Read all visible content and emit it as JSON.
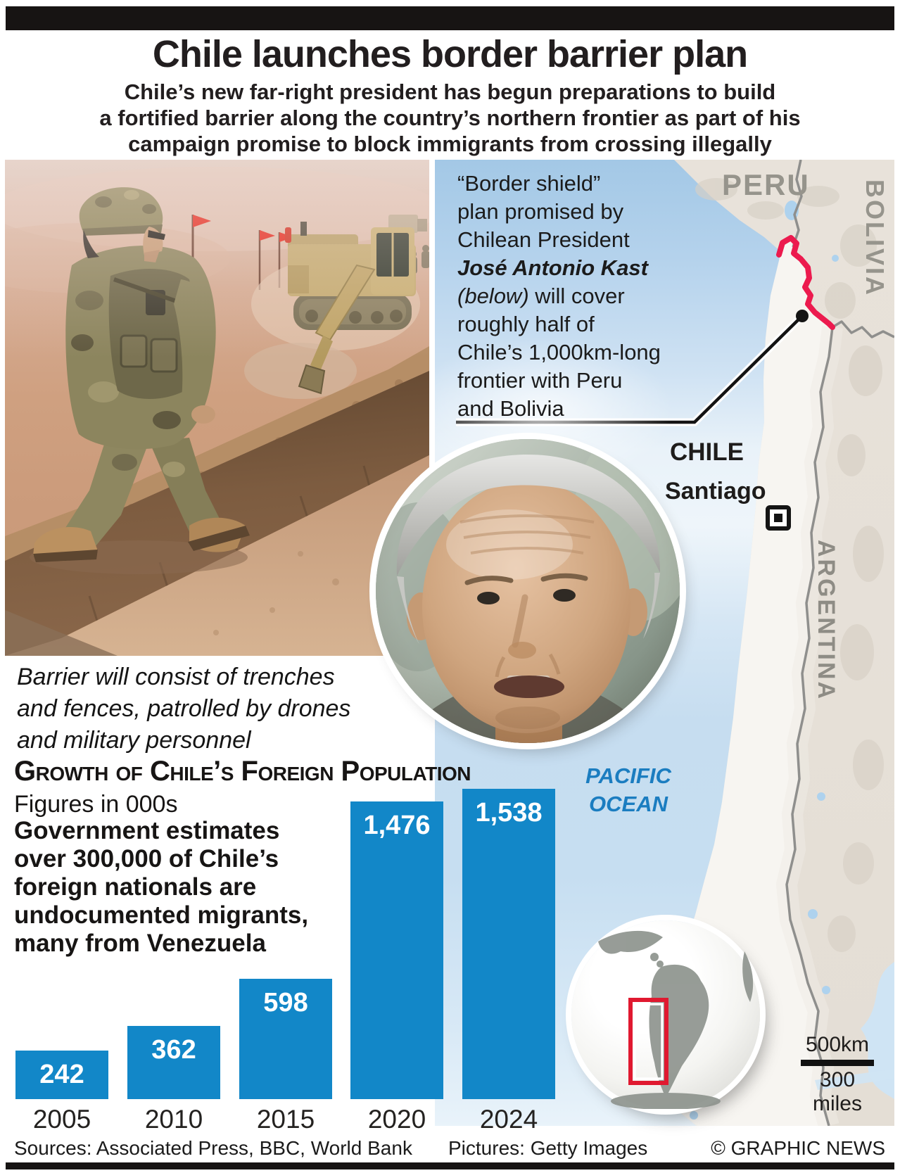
{
  "page": {
    "title": "Chile launches border barrier plan",
    "subtitle_lines": [
      "Chile’s new far-right president has begun preparations to build",
      "a fortified barrier along the country’s northern frontier as part of his",
      "campaign promise to block immigrants from crossing illegally"
    ]
  },
  "callout": {
    "lines": [
      [
        {
          "t": "“Border shield”",
          "s": "r"
        }
      ],
      [
        {
          "t": "plan promised by",
          "s": "r"
        }
      ],
      [
        {
          "t": "Chilean President",
          "s": "r"
        }
      ],
      [
        {
          "t": "José Antonio Kast",
          "s": "bi"
        }
      ],
      [
        {
          "t": "(below)",
          "s": "i"
        },
        {
          "t": " will cover",
          "s": "r"
        }
      ],
      [
        {
          "t": "roughly half of",
          "s": "r"
        }
      ],
      [
        {
          "t": "Chile’s 1,000km-long",
          "s": "r"
        }
      ],
      [
        {
          "t": "frontier with Peru",
          "s": "r"
        }
      ],
      [
        {
          "t": "and Bolivia",
          "s": "r"
        }
      ]
    ]
  },
  "photo": {
    "caption_lines": [
      "Barrier will consist of trenches",
      "and fences, patrolled by drones",
      "and military personnel"
    ]
  },
  "map": {
    "labels": {
      "peru": "PERU",
      "bolivia": "BOLIVIA",
      "chile": "CHILE",
      "santiago": "Santiago",
      "argentina": "ARGENTINA",
      "pacific_line1": "PACIFIC",
      "pacific_line2": "OCEAN"
    },
    "scale": {
      "km": "500km",
      "miles": "300 miles"
    },
    "barrier_color": "#ec1a4e",
    "ocean_label_color": "#1b7dc0"
  },
  "chart_data": {
    "type": "bar",
    "title": "Growth of Chile’s Foreign Population",
    "subtitle": "Figures in 000s",
    "categories": [
      "2005",
      "2010",
      "2015",
      "2020",
      "2024"
    ],
    "values": [
      242,
      362,
      598,
      1476,
      1538
    ],
    "value_labels": [
      "242",
      "362",
      "598",
      "1,476",
      "1,538"
    ],
    "bar_color": "#1287c8",
    "label_color": "#ffffff",
    "ylim": [
      0,
      1600
    ],
    "unit": "thousands of people"
  },
  "body_text": {
    "heading": "Growth of Chile’s Foreign Population",
    "note": "Figures in 000s",
    "paragraph_lines": [
      "Government estimates",
      "over 300,000 of Chile’s",
      "foreign nationals are",
      "undocumented migrants,",
      "many from Venezuela"
    ]
  },
  "footer": {
    "sources": "Sources: Associated Press, BBC, World Bank",
    "pictures": "Pictures: Getty Images",
    "copyright": "© GRAPHIC NEWS"
  }
}
